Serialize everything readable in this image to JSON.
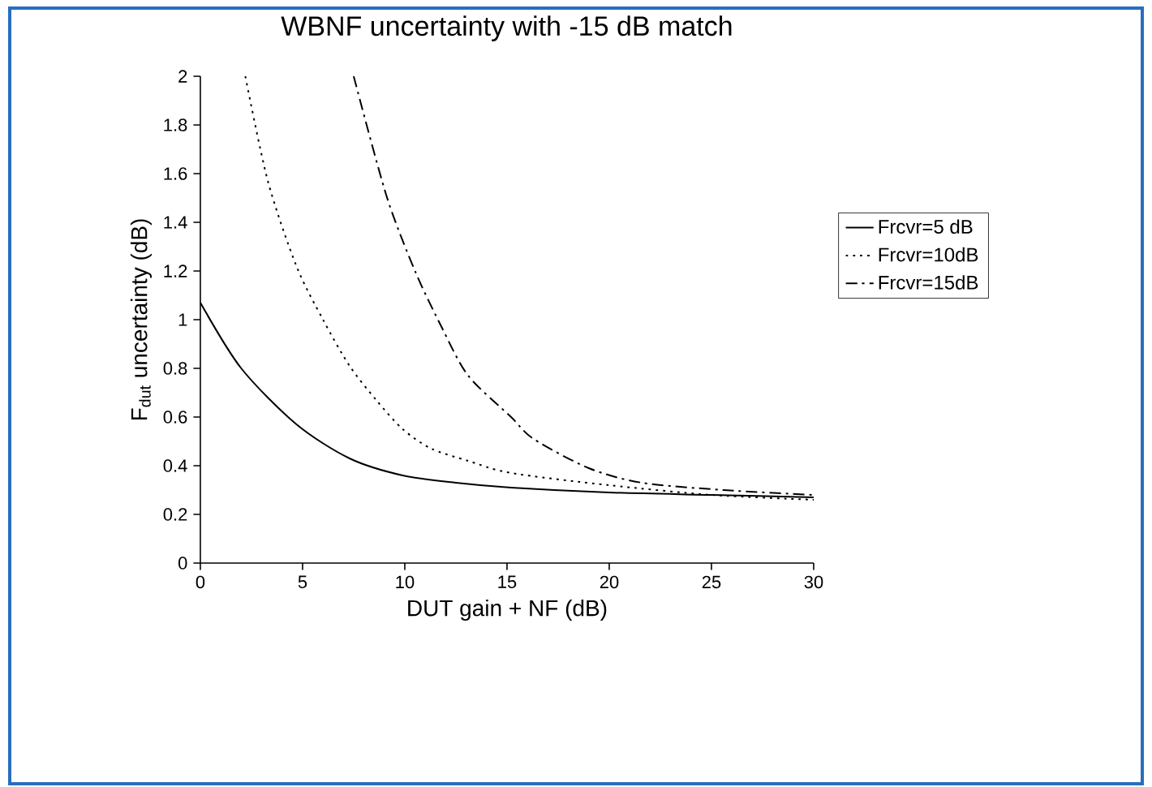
{
  "chart_data": {
    "type": "line",
    "title": "WBNF uncertainty with -15 dB match",
    "xlabel": "DUT gain + NF (dB)",
    "ylabel": "F$_{dut}$  uncertainty (dB)",
    "xlim": [
      0,
      30
    ],
    "ylim": [
      0,
      2
    ],
    "xticks": [
      0,
      5,
      10,
      15,
      20,
      25,
      30
    ],
    "yticks": [
      0,
      0.2,
      0.4,
      0.6,
      0.8,
      1,
      1.2,
      1.4,
      1.6,
      1.8,
      2
    ],
    "legend": "right",
    "grid": false,
    "marker": "none",
    "series": [
      {
        "name": "Frcvr=5 dB",
        "color": "#000000",
        "line_style": "solid",
        "x": [
          0,
          2,
          4.7,
          7.3,
          9.9,
          12.5,
          15.2,
          20,
          25,
          30
        ],
        "values": [
          1.07,
          0.8,
          0.57,
          0.43,
          0.36,
          0.33,
          0.31,
          0.29,
          0.28,
          0.27
        ]
      },
      {
        "name": "Frcvr=10dB",
        "color": "#000000",
        "line_style": "dotted",
        "x": [
          2.2,
          3.3,
          4.7,
          6,
          7.3,
          8.6,
          9.9,
          11.3,
          13.1,
          15.2,
          20,
          25,
          30
        ],
        "values": [
          2,
          1.57,
          1.22,
          1,
          0.81,
          0.67,
          0.55,
          0.47,
          0.42,
          0.37,
          0.32,
          0.28,
          0.26
        ]
      },
      {
        "name": "Frcvr=15dB",
        "color": "#000000",
        "line_style": "dashdot",
        "x": [
          7.5,
          9.1,
          10.5,
          11.8,
          13.1,
          15.2,
          16.3,
          19,
          21.6,
          25.6,
          30
        ],
        "values": [
          2,
          1.51,
          1.2,
          0.97,
          0.77,
          0.6,
          0.51,
          0.39,
          0.33,
          0.3,
          0.28
        ]
      }
    ]
  }
}
